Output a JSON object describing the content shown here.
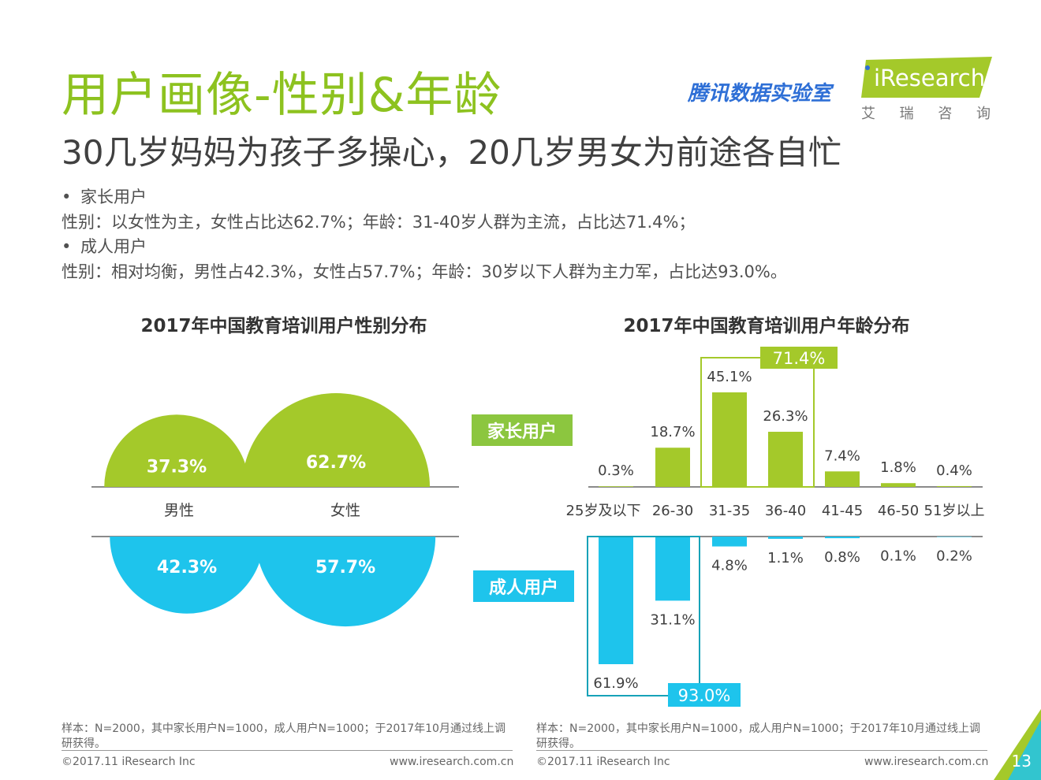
{
  "header": {
    "title": "用户画像-性别&年龄",
    "subtitle": "30几岁妈妈为孩子多操心，20几岁男女为前途各自忙",
    "brand_left": "腾讯数据实验室",
    "brand_right": "iResearch",
    "brand_right_sub": [
      "艾",
      "瑞",
      "咨",
      "询"
    ]
  },
  "summary": {
    "bullet_char": "•",
    "items": [
      {
        "label": "家长用户",
        "text": "性别：以女性为主，女性占比达62.7%；年龄：31-40岁人群为主流，占比达71.4%；"
      },
      {
        "label": "成人用户",
        "text": "性别：相对均衡，男性占42.3%，女性占57.7%；年龄：30岁以下人群为主力军，占比达93.0%。"
      }
    ]
  },
  "colors": {
    "green": "#a4c92a",
    "blue": "#1ec4ec",
    "title_green": "#8dc21f",
    "tag_green": "#8cc63f"
  },
  "chart_data": [
    {
      "type": "bar",
      "title": "2017年中国教育培训用户性别分布",
      "categories": [
        "男性",
        "女性"
      ],
      "series": [
        {
          "name": "家长用户",
          "values": [
            37.3,
            62.7
          ],
          "labels": [
            "37.3%",
            "62.7%"
          ]
        },
        {
          "name": "成人用户",
          "values": [
            42.3,
            57.7
          ],
          "labels": [
            "42.3%",
            "57.7%"
          ]
        }
      ]
    },
    {
      "type": "bar",
      "title": "2017年中国教育培训用户年龄分布",
      "categories": [
        "25岁及以下",
        "26-30",
        "31-35",
        "36-40",
        "41-45",
        "46-50",
        "51岁以上"
      ],
      "series": [
        {
          "name": "家长用户",
          "values": [
            0.3,
            18.7,
            45.1,
            26.3,
            7.4,
            1.8,
            0.4
          ],
          "labels": [
            "0.3%",
            "18.7%",
            "45.1%",
            "26.3%",
            "7.4%",
            "1.8%",
            "0.4%"
          ]
        },
        {
          "name": "成人用户",
          "values": [
            61.9,
            31.1,
            4.8,
            1.1,
            0.8,
            0.1,
            0.2
          ],
          "labels": [
            "61.9%",
            "31.1%",
            "4.8%",
            "1.1%",
            "0.8%",
            "0.1%",
            "0.2%"
          ]
        }
      ],
      "annotations": [
        {
          "series": "家长用户",
          "categories": [
            "31-35",
            "36-40"
          ],
          "text": "71.4%"
        },
        {
          "series": "成人用户",
          "categories": [
            "25岁及以下",
            "26-30"
          ],
          "text": "93.0%"
        }
      ]
    }
  ],
  "footer": {
    "left": {
      "source": "样本：N=2000，其中家长用户N=1000，成人用户N=1000；于2017年10月通过线上调研获得。",
      "copyright": "©2017.11 iResearch Inc",
      "url": "www.iresearch.com.cn"
    },
    "right": {
      "source": "样本：N=2000，其中家长用户N=1000，成人用户N=1000；于2017年10月通过线上调研获得。",
      "copyright": "©2017.11 iResearch Inc",
      "url": "www.iresearch.com.cn"
    },
    "page_number": "13"
  }
}
